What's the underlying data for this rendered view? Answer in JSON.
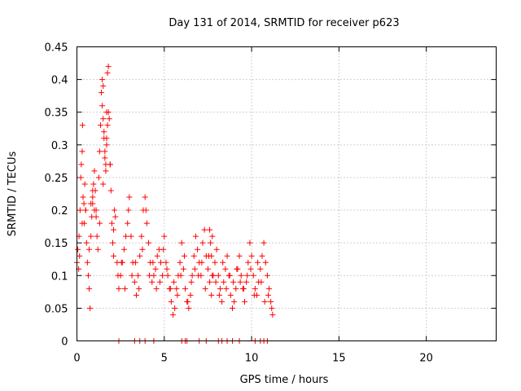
{
  "chart_data": {
    "type": "scatter",
    "title": "Day 131 of 2014, SRMTID for receiver p623",
    "xlabel": "GPS time / hours",
    "ylabel": "SRMTID / TECUs",
    "xlim": [
      0,
      24
    ],
    "ylim": [
      0,
      0.45
    ],
    "xticks": [
      0,
      5,
      10,
      15,
      20
    ],
    "xtick_labels": [
      "0",
      "5",
      "10",
      "15",
      "20"
    ],
    "yticks": [
      0,
      0.05,
      0.1,
      0.15,
      0.2,
      0.25,
      0.3,
      0.35,
      0.4,
      0.45
    ],
    "ytick_labels": [
      "0",
      "0.05",
      "0.1",
      "0.15",
      "0.2",
      "0.25",
      "0.3",
      "0.35",
      "0.4",
      "0.45"
    ],
    "grid": true,
    "marker": "+",
    "color": "#ff0000",
    "series": [
      {
        "name": "SRMTID",
        "x": [
          0.0,
          0.05,
          0.1,
          0.12,
          0.18,
          0.22,
          0.25,
          0.3,
          0.32,
          0.35,
          0.4,
          0.42,
          0.45,
          0.5,
          0.55,
          0.6,
          0.65,
          0.7,
          0.75,
          0.8,
          0.85,
          0.9,
          0.95,
          1.0,
          1.05,
          1.1,
          1.15,
          1.2,
          1.25,
          1.3,
          1.35,
          1.4,
          1.45,
          1.5,
          1.55,
          1.6,
          1.65,
          1.7,
          1.75,
          1.8,
          1.85,
          1.9,
          1.95,
          2.0,
          2.05,
          2.1,
          2.15,
          2.2,
          2.3,
          2.4,
          2.5,
          2.6,
          2.7,
          2.8,
          2.9,
          3.0,
          3.1,
          3.2,
          3.3,
          3.4,
          3.5,
          3.6,
          3.7,
          3.8,
          3.9,
          4.0,
          4.1,
          4.2,
          4.3,
          4.4,
          4.5,
          4.6,
          4.7,
          4.8,
          4.9,
          5.0,
          5.1,
          5.2,
          5.3,
          5.4,
          5.5,
          5.6,
          5.7,
          5.8,
          5.9,
          6.0,
          6.1,
          6.2,
          6.3,
          6.4,
          6.5,
          6.6,
          6.7,
          6.8,
          6.9,
          7.0,
          7.1,
          7.2,
          7.3,
          7.4,
          7.5,
          7.6,
          7.7,
          7.8,
          7.9,
          8.0,
          8.1,
          8.2,
          8.3,
          8.4,
          8.5,
          8.6,
          8.7,
          8.8,
          8.9,
          9.0,
          9.1,
          9.2,
          9.3,
          9.4,
          9.5,
          9.6,
          9.7,
          9.8,
          9.9,
          10.0,
          10.1,
          10.2,
          10.3,
          10.4,
          10.5,
          10.6,
          10.7,
          10.8,
          10.9,
          11.0,
          11.1,
          11.2,
          0.15,
          0.3,
          0.5,
          0.7,
          0.9,
          1.1,
          1.3,
          1.5,
          1.7,
          1.9,
          2.1,
          2.35,
          2.55,
          2.75,
          2.95,
          3.15,
          3.35,
          3.55,
          3.75,
          3.95,
          4.15,
          4.35,
          4.55,
          4.75,
          4.95,
          5.15,
          5.35,
          5.55,
          5.75,
          5.95,
          6.15,
          6.35,
          6.55,
          6.75,
          6.95,
          7.15,
          7.35,
          7.55,
          7.75,
          7.95,
          8.15,
          8.35,
          8.55,
          8.75,
          8.95,
          9.15,
          9.35,
          9.55,
          9.75,
          9.95,
          10.15,
          10.35,
          10.55,
          10.75,
          10.95,
          11.15,
          1.45,
          1.5,
          1.55,
          1.6,
          1.65,
          1.7,
          1.75,
          1.8,
          0.8,
          0.9,
          1.0,
          7.6,
          7.65,
          7.7,
          7.75,
          2.4,
          3.3,
          3.6,
          3.9,
          4.4,
          6.0,
          6.2,
          6.3,
          7.0,
          7.4,
          8.1,
          8.3,
          8.6,
          8.9,
          9.3,
          10.2,
          10.5,
          10.7,
          10.9
        ],
        "y": [
          0.12,
          0.14,
          0.11,
          0.16,
          0.2,
          0.25,
          0.27,
          0.29,
          0.33,
          0.22,
          0.21,
          0.18,
          0.24,
          0.2,
          0.15,
          0.12,
          0.1,
          0.08,
          0.05,
          0.16,
          0.19,
          0.21,
          0.24,
          0.26,
          0.23,
          0.19,
          0.16,
          0.14,
          0.25,
          0.29,
          0.33,
          0.38,
          0.4,
          0.39,
          0.32,
          0.28,
          0.26,
          0.35,
          0.41,
          0.42,
          0.34,
          0.27,
          0.23,
          0.18,
          0.15,
          0.13,
          0.2,
          0.19,
          0.12,
          0.08,
          0.1,
          0.12,
          0.14,
          0.16,
          0.18,
          0.22,
          0.16,
          0.12,
          0.09,
          0.07,
          0.1,
          0.13,
          0.16,
          0.2,
          0.22,
          0.18,
          0.15,
          0.12,
          0.09,
          0.1,
          0.11,
          0.13,
          0.14,
          0.12,
          0.1,
          0.16,
          0.12,
          0.1,
          0.08,
          0.06,
          0.04,
          0.05,
          0.08,
          0.1,
          0.12,
          0.15,
          0.11,
          0.08,
          0.06,
          0.05,
          0.07,
          0.1,
          0.13,
          0.16,
          0.14,
          0.12,
          0.1,
          0.15,
          0.17,
          0.13,
          0.11,
          0.09,
          0.07,
          0.1,
          0.12,
          0.14,
          0.1,
          0.08,
          0.06,
          0.09,
          0.11,
          0.13,
          0.1,
          0.07,
          0.05,
          0.06,
          0.08,
          0.11,
          0.13,
          0.1,
          0.08,
          0.06,
          0.09,
          0.12,
          0.15,
          0.13,
          0.1,
          0.08,
          0.07,
          0.09,
          0.11,
          0.13,
          0.15,
          0.12,
          0.1,
          0.08,
          0.06,
          0.04,
          0.13,
          0.18,
          0.2,
          0.14,
          0.22,
          0.2,
          0.18,
          0.24,
          0.31,
          0.27,
          0.17,
          0.1,
          0.12,
          0.08,
          0.2,
          0.1,
          0.12,
          0.08,
          0.14,
          0.2,
          0.1,
          0.12,
          0.08,
          0.09,
          0.14,
          0.11,
          0.08,
          0.09,
          0.07,
          0.1,
          0.13,
          0.06,
          0.09,
          0.11,
          0.1,
          0.12,
          0.08,
          0.13,
          0.1,
          0.09,
          0.07,
          0.12,
          0.08,
          0.1,
          0.09,
          0.11,
          0.09,
          0.08,
          0.1,
          0.11,
          0.07,
          0.12,
          0.09,
          0.06,
          0.07,
          0.05,
          0.36,
          0.34,
          0.31,
          0.29,
          0.27,
          0.3,
          0.33,
          0.35,
          0.21,
          0.23,
          0.2,
          0.17,
          0.15,
          0.13,
          0.16,
          0.0,
          0.0,
          0.0,
          0.0,
          0.0,
          0.0,
          0.0,
          0.0,
          0.0,
          0.0,
          0.0,
          0.0,
          0.0,
          0.0,
          0.0,
          0.0,
          0.0,
          0.0,
          0.0
        ]
      }
    ]
  }
}
